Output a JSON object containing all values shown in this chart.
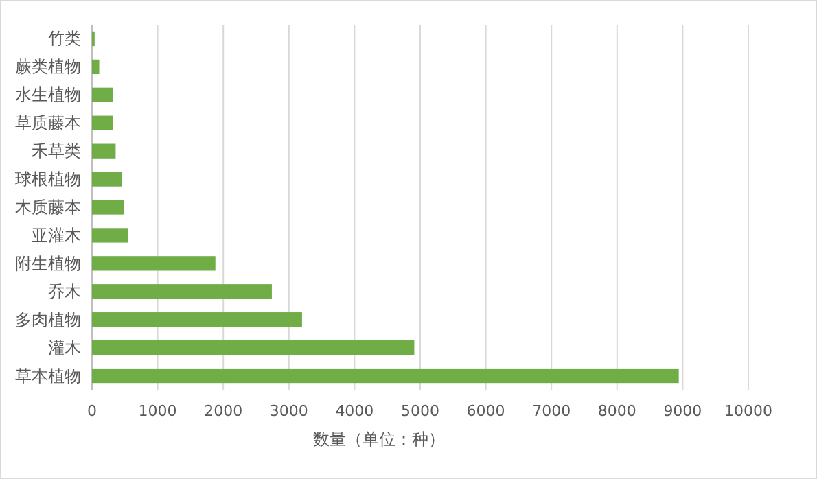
{
  "chart_data": {
    "type": "bar",
    "orientation": "horizontal",
    "xlabel": "数量（单位：种）",
    "categories": [
      "竹类",
      "蕨类植物",
      "水生植物",
      "草质藤本",
      "禾草类",
      "球根植物",
      "木质藤本",
      "亚灌木",
      "附生植物",
      "乔木",
      "多肉植物",
      "灌木",
      "草本植物"
    ],
    "values": [
      40,
      110,
      320,
      320,
      360,
      450,
      490,
      550,
      1880,
      2740,
      3200,
      4910,
      8940
    ],
    "color": "#70ad47",
    "xlim": [
      0,
      10000
    ],
    "xticks": [
      0,
      1000,
      2000,
      3000,
      4000,
      5000,
      6000,
      7000,
      8000,
      9000,
      10000
    ],
    "grid": "x"
  }
}
